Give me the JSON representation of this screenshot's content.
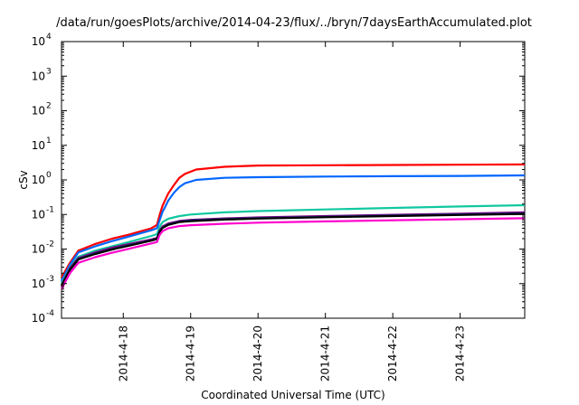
{
  "chart_data": {
    "type": "line",
    "title": "/data/run/goesPlots/archive/2014-04-23/flux/../bryn/7daysEarthAccumulated.plot",
    "xlabel": "Coordinated Universal Time (UTC)",
    "ylabel": "cSv",
    "yscale": "log",
    "ylim": [
      0.0001,
      10000
    ],
    "y_ticks": [
      {
        "base": "10",
        "exp": "-4",
        "value": 0.0001
      },
      {
        "base": "10",
        "exp": "-3",
        "value": 0.001
      },
      {
        "base": "10",
        "exp": "-2",
        "value": 0.01
      },
      {
        "base": "10",
        "exp": "-1",
        "value": 0.1
      },
      {
        "base": "10",
        "exp": "0",
        "value": 1
      },
      {
        "base": "10",
        "exp": "1",
        "value": 10
      },
      {
        "base": "10",
        "exp": "2",
        "value": 100
      },
      {
        "base": "10",
        "exp": "3",
        "value": 1000
      },
      {
        "base": "10",
        "exp": "4",
        "value": 10000
      }
    ],
    "xlim": [
      "2014-04-17T02:00",
      "2014-04-23T23:00"
    ],
    "x_ticks": [
      "2014-4-18",
      "2014-4-19",
      "2014-4-20",
      "2014-4-21",
      "2014-4-22",
      "2014-4-23"
    ],
    "x_tick_values": [
      "2014-04-18T00:00",
      "2014-04-19T00:00",
      "2014-04-20T00:00",
      "2014-04-21T00:00",
      "2014-04-22T00:00",
      "2014-04-23T00:00"
    ],
    "grid": false,
    "legend": "none",
    "series": [
      {
        "color": "#ff0000",
        "x": [
          "2014-04-17T02:00",
          "2014-04-17T05:00",
          "2014-04-17T08:00",
          "2014-04-17T14:00",
          "2014-04-17T20:00",
          "2014-04-18T02:00",
          "2014-04-18T10:00",
          "2014-04-18T12:00",
          "2014-04-18T13:00",
          "2014-04-18T14:00",
          "2014-04-18T15:00",
          "2014-04-18T16:00",
          "2014-04-18T18:00",
          "2014-04-18T20:00",
          "2014-04-18T22:00",
          "2014-04-19T02:00",
          "2014-04-19T12:00",
          "2014-04-20T00:00",
          "2014-04-21T00:00",
          "2014-04-22T00:00",
          "2014-04-23T00:00",
          "2014-04-23T23:00"
        ],
        "y": [
          0.0015,
          0.004,
          0.009,
          0.014,
          0.02,
          0.026,
          0.04,
          0.05,
          0.1,
          0.18,
          0.27,
          0.4,
          0.7,
          1.15,
          1.5,
          2.0,
          2.4,
          2.6,
          2.65,
          2.7,
          2.75,
          2.8
        ]
      },
      {
        "color": "#0066ff",
        "x": [
          "2014-04-17T02:00",
          "2014-04-17T05:00",
          "2014-04-17T08:00",
          "2014-04-17T14:00",
          "2014-04-17T20:00",
          "2014-04-18T02:00",
          "2014-04-18T10:00",
          "2014-04-18T12:00",
          "2014-04-18T13:00",
          "2014-04-18T14:00",
          "2014-04-18T15:00",
          "2014-04-18T16:00",
          "2014-04-18T18:00",
          "2014-04-18T20:00",
          "2014-04-18T22:00",
          "2014-04-19T02:00",
          "2014-04-19T12:00",
          "2014-04-20T00:00",
          "2014-04-21T00:00",
          "2014-04-22T00:00",
          "2014-04-23T00:00",
          "2014-04-23T23:00"
        ],
        "y": [
          0.0012,
          0.0035,
          0.008,
          0.012,
          0.017,
          0.023,
          0.035,
          0.04,
          0.07,
          0.12,
          0.17,
          0.25,
          0.42,
          0.62,
          0.8,
          1.0,
          1.15,
          1.2,
          1.25,
          1.28,
          1.3,
          1.35
        ]
      },
      {
        "color": "#10c8a0",
        "x": [
          "2014-04-17T02:00",
          "2014-04-17T05:00",
          "2014-04-17T08:00",
          "2014-04-17T14:00",
          "2014-04-17T20:00",
          "2014-04-18T02:00",
          "2014-04-18T10:00",
          "2014-04-18T12:00",
          "2014-04-18T13:00",
          "2014-04-18T14:00",
          "2014-04-18T16:00",
          "2014-04-18T20:00",
          "2014-04-19T00:00",
          "2014-04-19T12:00",
          "2014-04-20T00:00",
          "2014-04-21T00:00",
          "2014-04-22T00:00",
          "2014-04-23T00:00",
          "2014-04-23T23:00"
        ],
        "y": [
          0.001,
          0.003,
          0.006,
          0.009,
          0.012,
          0.016,
          0.024,
          0.027,
          0.045,
          0.06,
          0.075,
          0.09,
          0.1,
          0.115,
          0.125,
          0.14,
          0.155,
          0.17,
          0.185
        ]
      },
      {
        "color": "#800080",
        "x": [
          "2014-04-17T02:00",
          "2014-04-17T05:00",
          "2014-04-17T08:00",
          "2014-04-17T14:00",
          "2014-04-17T20:00",
          "2014-04-18T02:00",
          "2014-04-18T10:00",
          "2014-04-18T12:00",
          "2014-04-18T13:00",
          "2014-04-18T14:00",
          "2014-04-18T16:00",
          "2014-04-18T20:00",
          "2014-04-19T00:00",
          "2014-04-19T12:00",
          "2014-04-20T00:00",
          "2014-04-21T00:00",
          "2014-04-22T00:00",
          "2014-04-23T00:00",
          "2014-04-23T23:00"
        ],
        "y": [
          0.0009,
          0.0028,
          0.0055,
          0.008,
          0.011,
          0.014,
          0.019,
          0.021,
          0.035,
          0.045,
          0.055,
          0.065,
          0.07,
          0.077,
          0.082,
          0.09,
          0.098,
          0.106,
          0.115
        ]
      },
      {
        "color": "#203080",
        "x": [
          "2014-04-17T02:00",
          "2014-04-17T05:00",
          "2014-04-17T08:00",
          "2014-04-17T14:00",
          "2014-04-17T20:00",
          "2014-04-18T02:00",
          "2014-04-18T10:00",
          "2014-04-18T12:00",
          "2014-04-18T13:00",
          "2014-04-18T14:00",
          "2014-04-18T16:00",
          "2014-04-18T20:00",
          "2014-04-19T00:00",
          "2014-04-19T12:00",
          "2014-04-20T00:00",
          "2014-04-21T00:00",
          "2014-04-22T00:00",
          "2014-04-23T00:00",
          "2014-04-23T23:00"
        ],
        "y": [
          0.0009,
          0.0026,
          0.0052,
          0.0075,
          0.01,
          0.013,
          0.018,
          0.02,
          0.033,
          0.043,
          0.052,
          0.062,
          0.067,
          0.074,
          0.079,
          0.086,
          0.094,
          0.101,
          0.108
        ]
      },
      {
        "color": "#000000",
        "x": [
          "2014-04-17T02:00",
          "2014-04-17T05:00",
          "2014-04-17T08:00",
          "2014-04-17T14:00",
          "2014-04-17T20:00",
          "2014-04-18T02:00",
          "2014-04-18T10:00",
          "2014-04-18T12:00",
          "2014-04-18T13:00",
          "2014-04-18T14:00",
          "2014-04-18T16:00",
          "2014-04-18T20:00",
          "2014-04-19T00:00",
          "2014-04-19T12:00",
          "2014-04-20T00:00",
          "2014-04-21T00:00",
          "2014-04-22T00:00",
          "2014-04-23T00:00",
          "2014-04-23T23:00"
        ],
        "y": [
          0.00085,
          0.0025,
          0.005,
          0.0072,
          0.0097,
          0.0125,
          0.0175,
          0.0195,
          0.032,
          0.041,
          0.05,
          0.06,
          0.064,
          0.071,
          0.076,
          0.083,
          0.09,
          0.097,
          0.104
        ]
      },
      {
        "color": "#ff00cc",
        "x": [
          "2014-04-17T02:00",
          "2014-04-17T05:00",
          "2014-04-17T08:00",
          "2014-04-17T14:00",
          "2014-04-17T20:00",
          "2014-04-18T02:00",
          "2014-04-18T10:00",
          "2014-04-18T12:00",
          "2014-04-18T13:00",
          "2014-04-18T14:00",
          "2014-04-18T16:00",
          "2014-04-18T20:00",
          "2014-04-19T00:00",
          "2014-04-19T12:00",
          "2014-04-20T00:00",
          "2014-04-21T00:00",
          "2014-04-22T00:00",
          "2014-04-23T00:00",
          "2014-04-23T23:00"
        ],
        "y": [
          0.0007,
          0.002,
          0.004,
          0.0058,
          0.0078,
          0.0102,
          0.0145,
          0.016,
          0.026,
          0.033,
          0.04,
          0.046,
          0.049,
          0.054,
          0.058,
          0.063,
          0.068,
          0.073,
          0.078
        ]
      }
    ]
  }
}
